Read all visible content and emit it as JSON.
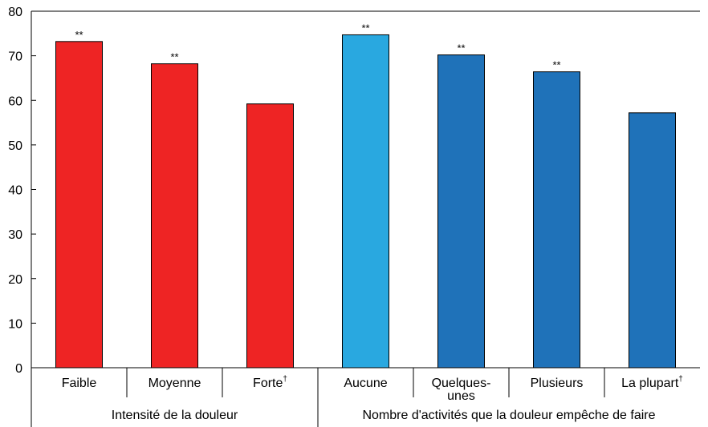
{
  "chart_data": {
    "type": "bar",
    "title": "",
    "xlabel": "",
    "ylabel": "",
    "ylim": [
      0,
      80
    ],
    "yticks": [
      0,
      10,
      20,
      30,
      40,
      50,
      60,
      70,
      80
    ],
    "grid": false,
    "legend": "none",
    "categories": [
      [
        "Faible"
      ],
      [
        "Moyenne"
      ],
      [
        "Forte"
      ],
      [
        "Aucune"
      ],
      [
        "Quelques-",
        "unes"
      ],
      [
        "Plusieurs"
      ],
      [
        "La plupart"
      ]
    ],
    "category_superscripts": [
      "",
      "",
      "†",
      "",
      "",
      "",
      "†"
    ],
    "values": [
      73.2,
      68.2,
      59.2,
      74.7,
      70.2,
      66.4,
      57.2
    ],
    "significance_labels": [
      "**",
      "**",
      "",
      "**",
      "**",
      "**",
      ""
    ],
    "bar_colors": [
      "#ee2424",
      "#ee2424",
      "#ee2424",
      "#29a8e0",
      "#1f72b9",
      "#1f72b9",
      "#1f72b9"
    ],
    "groups": [
      {
        "label": "Intensité de la douleur",
        "category_indices": [
          0,
          1,
          2
        ]
      },
      {
        "label": "Nombre d'activités que la douleur empêche de faire",
        "category_indices": [
          3,
          4,
          5,
          6
        ]
      }
    ]
  }
}
